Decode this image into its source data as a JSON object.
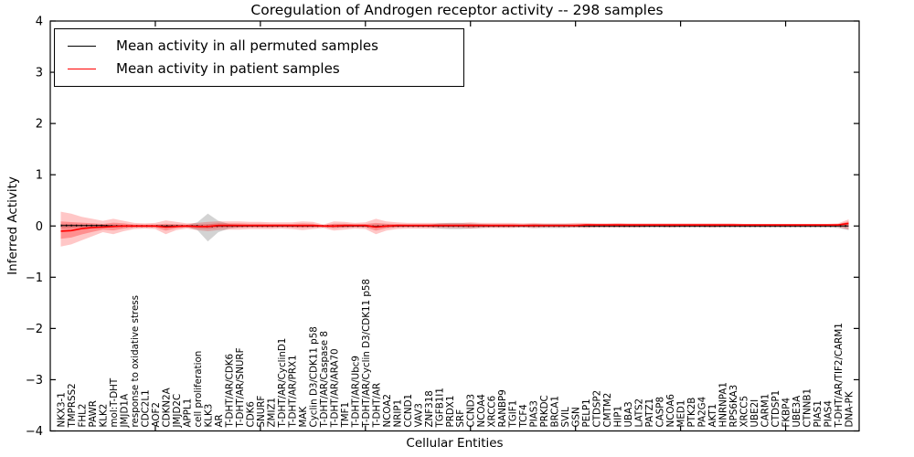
{
  "title": "Coregulation of Androgen receptor activity -- 298 samples",
  "legend": {
    "entries": [
      {
        "label": "Mean activity in all permuted samples",
        "color": "#000000"
      },
      {
        "label": "Mean activity in patient samples",
        "color": "#ff0000"
      }
    ],
    "position": "upper left"
  },
  "colors": {
    "permuted_line": "#000000",
    "patient_line": "#ff0000",
    "patient_band": "#ff0000",
    "permuted_band": "#808080",
    "frame": "#000000"
  },
  "chart_data": {
    "type": "line",
    "title": "Coregulation of Androgen receptor activity -- 298 samples",
    "xlabel": "Cellular Entities",
    "ylabel": "Inferred Activity",
    "ylim": [
      -4,
      4
    ],
    "xlim": [
      0,
      77
    ],
    "grid": false,
    "legend_position": "upper left",
    "yticks": [
      4,
      3,
      2,
      1,
      0,
      -1,
      -2,
      -3,
      -4
    ],
    "ytick_labels": [
      "4",
      "3",
      "2",
      "1",
      "0",
      "−1",
      "−2",
      "−3",
      "−4"
    ],
    "xticks": [
      10,
      20,
      30,
      40,
      50,
      60,
      70
    ],
    "entities": [
      "NKX3-1",
      "TMPRSS2",
      "FHL2",
      "PAWR",
      "KLK2",
      "mol:T-DHT",
      "JMJD1A",
      "response to oxidative stress",
      "CDC2L1",
      "AOF2",
      "CDKN2A",
      "JMJD2C",
      "APPL1",
      "cell proliferation",
      "KLK3",
      "AR",
      "T-DHT/AR/CDK6",
      "T-DHT/AR/SNURF",
      "CDK6",
      "SNURF",
      "ZMIZ1",
      "T-DHT/AR/CyclinD1",
      "T-DHT/AR/PRX1",
      "MAK",
      "Cyclin D3/CDK11 p58",
      "T-DHT/AR/Caspase 8",
      "T-DHT/AR/ARA70",
      "TMF1",
      "T-DHT/AR/Ubc9",
      "T-DHT/AR/Cyclin D3/CDK11 p58",
      "T-DHT/AR",
      "NCOA2",
      "NRIP1",
      "CCND1",
      "VAV3",
      "ZNF318",
      "TGFB1I1",
      "PRDX1",
      "SRF",
      "CCND3",
      "NCOA4",
      "XRCC6",
      "RANBP9",
      "TGIF1",
      "TCF4",
      "PIAS3",
      "PRKDC",
      "BRCA1",
      "SVIL",
      "GSN",
      "PELP1",
      "CTDSP2",
      "CMTM2",
      "HIP1",
      "UBA3",
      "LATS2",
      "PATZ1",
      "CASP8",
      "NCOA6",
      "MED1",
      "PTK2B",
      "PA2G4",
      "AKT1",
      "HNRNPA1",
      "RPS6KA3",
      "XRCC5",
      "UBE2I",
      "CARM1",
      "CTDSP1",
      "FKBP4",
      "UBE3A",
      "CTNNB1",
      "PIAS1",
      "PIAS4",
      "T-DHT/AR/TIF2/CARM1",
      "DNA-PK"
    ],
    "series": [
      {
        "name": "Mean activity in all permuted samples",
        "color": "#000000",
        "mean": [
          0.01,
          0.01,
          0.01,
          0.01,
          0.01,
          0,
          0,
          0,
          0,
          0,
          0,
          0,
          0,
          0,
          -0.01,
          0,
          0,
          0,
          0,
          0,
          0,
          0,
          0,
          0,
          0,
          0,
          0,
          0,
          0,
          0,
          -0.01,
          0,
          0,
          0,
          0,
          0,
          0,
          0,
          0,
          0,
          0,
          0,
          0,
          0,
          0,
          0,
          0,
          0,
          0,
          0,
          0,
          0,
          0,
          0,
          0,
          0,
          0,
          0,
          0,
          0,
          0,
          0,
          0,
          0,
          0,
          0,
          0,
          0,
          0,
          0,
          0,
          0,
          0,
          0,
          0,
          0
        ],
        "upper": [
          0.04,
          0.04,
          0.03,
          0.03,
          0.03,
          0.03,
          0.02,
          0.02,
          0.02,
          0.02,
          0.02,
          0.02,
          0.02,
          0.07,
          0.24,
          0.1,
          0.04,
          0.03,
          0.02,
          0.02,
          0.02,
          0.02,
          0.02,
          0.02,
          0.02,
          0.02,
          0.03,
          0.03,
          0.02,
          0.02,
          0.03,
          0.03,
          0.02,
          0.02,
          0.02,
          0.02,
          0.05,
          0.06,
          0.06,
          0.05,
          0.04,
          0.03,
          0.03,
          0.03,
          0.03,
          0.04,
          0.04,
          0.04,
          0.04,
          0.03,
          0.03,
          0.03,
          0.03,
          0.03,
          0.03,
          0.03,
          0.03,
          0.03,
          0.03,
          0.03,
          0.03,
          0.03,
          0.03,
          0.03,
          0.03,
          0.03,
          0.03,
          0.03,
          0.03,
          0.03,
          0.03,
          0.03,
          0.03,
          0.03,
          0.03,
          0.05
        ],
        "lower": [
          -0.04,
          -0.04,
          -0.03,
          -0.03,
          -0.03,
          -0.03,
          -0.02,
          -0.02,
          -0.02,
          -0.02,
          -0.02,
          -0.02,
          -0.02,
          -0.08,
          -0.3,
          -0.12,
          -0.05,
          -0.03,
          -0.02,
          -0.02,
          -0.02,
          -0.02,
          -0.02,
          -0.02,
          -0.02,
          -0.02,
          -0.03,
          -0.03,
          -0.02,
          -0.02,
          -0.03,
          -0.03,
          -0.02,
          -0.02,
          -0.02,
          -0.02,
          -0.05,
          -0.06,
          -0.06,
          -0.05,
          -0.04,
          -0.03,
          -0.03,
          -0.03,
          -0.03,
          -0.04,
          -0.04,
          -0.04,
          -0.04,
          -0.03,
          -0.03,
          -0.03,
          -0.03,
          -0.03,
          -0.03,
          -0.03,
          -0.03,
          -0.03,
          -0.03,
          -0.03,
          -0.03,
          -0.03,
          -0.03,
          -0.03,
          -0.03,
          -0.03,
          -0.03,
          -0.03,
          -0.03,
          -0.03,
          -0.03,
          -0.03,
          -0.03,
          -0.03,
          -0.04,
          -0.08
        ]
      },
      {
        "name": "Mean activity in patient samples",
        "color": "#ff0000",
        "mean": [
          -0.1,
          -0.09,
          -0.05,
          -0.03,
          -0.02,
          -0.01,
          0,
          0,
          0,
          0,
          -0.02,
          -0.01,
          0,
          -0.01,
          -0.01,
          0.01,
          0.01,
          0.01,
          0.01,
          0.01,
          0.01,
          0.01,
          0.01,
          0.01,
          0.01,
          0,
          0,
          0.01,
          0.01,
          0.01,
          -0.02,
          0,
          0.01,
          0.01,
          0.01,
          0.01,
          0.01,
          0.01,
          0.01,
          0.01,
          0.01,
          0.01,
          0.01,
          0.01,
          0.01,
          0.01,
          0.01,
          0.01,
          0.01,
          0.01,
          0.02,
          0.02,
          0.02,
          0.02,
          0.02,
          0.02,
          0.02,
          0.02,
          0.02,
          0.02,
          0.02,
          0.02,
          0.02,
          0.02,
          0.02,
          0.02,
          0.02,
          0.02,
          0.02,
          0.02,
          0.02,
          0.02,
          0.02,
          0.02,
          0.02,
          0.05
        ],
        "upper": [
          0.28,
          0.24,
          0.18,
          0.14,
          0.1,
          0.14,
          0.1,
          0.06,
          0.05,
          0.06,
          0.11,
          0.08,
          0.05,
          0.06,
          0.08,
          0.09,
          0.09,
          0.09,
          0.08,
          0.08,
          0.07,
          0.07,
          0.07,
          0.09,
          0.08,
          0.03,
          0.09,
          0.08,
          0.06,
          0.07,
          0.14,
          0.09,
          0.07,
          0.06,
          0.06,
          0.06,
          0.06,
          0.06,
          0.06,
          0.07,
          0.06,
          0.06,
          0.06,
          0.06,
          0.05,
          0.06,
          0.05,
          0.05,
          0.05,
          0.06,
          0.06,
          0.05,
          0.05,
          0.06,
          0.05,
          0.05,
          0.05,
          0.05,
          0.05,
          0.05,
          0.05,
          0.05,
          0.05,
          0.05,
          0.05,
          0.04,
          0.04,
          0.04,
          0.04,
          0.04,
          0.04,
          0.04,
          0.04,
          0.04,
          0.05,
          0.13
        ],
        "lower": [
          -0.4,
          -0.36,
          -0.28,
          -0.2,
          -0.12,
          -0.16,
          -0.1,
          -0.06,
          -0.05,
          -0.06,
          -0.16,
          -0.08,
          -0.05,
          -0.08,
          -0.1,
          -0.08,
          -0.07,
          -0.07,
          -0.06,
          -0.06,
          -0.06,
          -0.05,
          -0.06,
          -0.08,
          -0.06,
          -0.04,
          -0.09,
          -0.07,
          -0.05,
          -0.06,
          -0.16,
          -0.09,
          -0.06,
          -0.05,
          -0.05,
          -0.05,
          -0.04,
          -0.04,
          -0.04,
          -0.05,
          -0.04,
          -0.04,
          -0.04,
          -0.04,
          -0.03,
          -0.04,
          -0.03,
          -0.03,
          -0.03,
          -0.03,
          -0.04,
          -0.03,
          -0.03,
          -0.03,
          -0.03,
          -0.03,
          -0.02,
          -0.02,
          -0.03,
          -0.02,
          -0.02,
          -0.02,
          -0.03,
          -0.02,
          -0.02,
          -0.02,
          -0.02,
          -0.02,
          -0.02,
          -0.02,
          -0.02,
          -0.02,
          -0.02,
          -0.02,
          -0.02,
          -0.07
        ]
      }
    ]
  }
}
